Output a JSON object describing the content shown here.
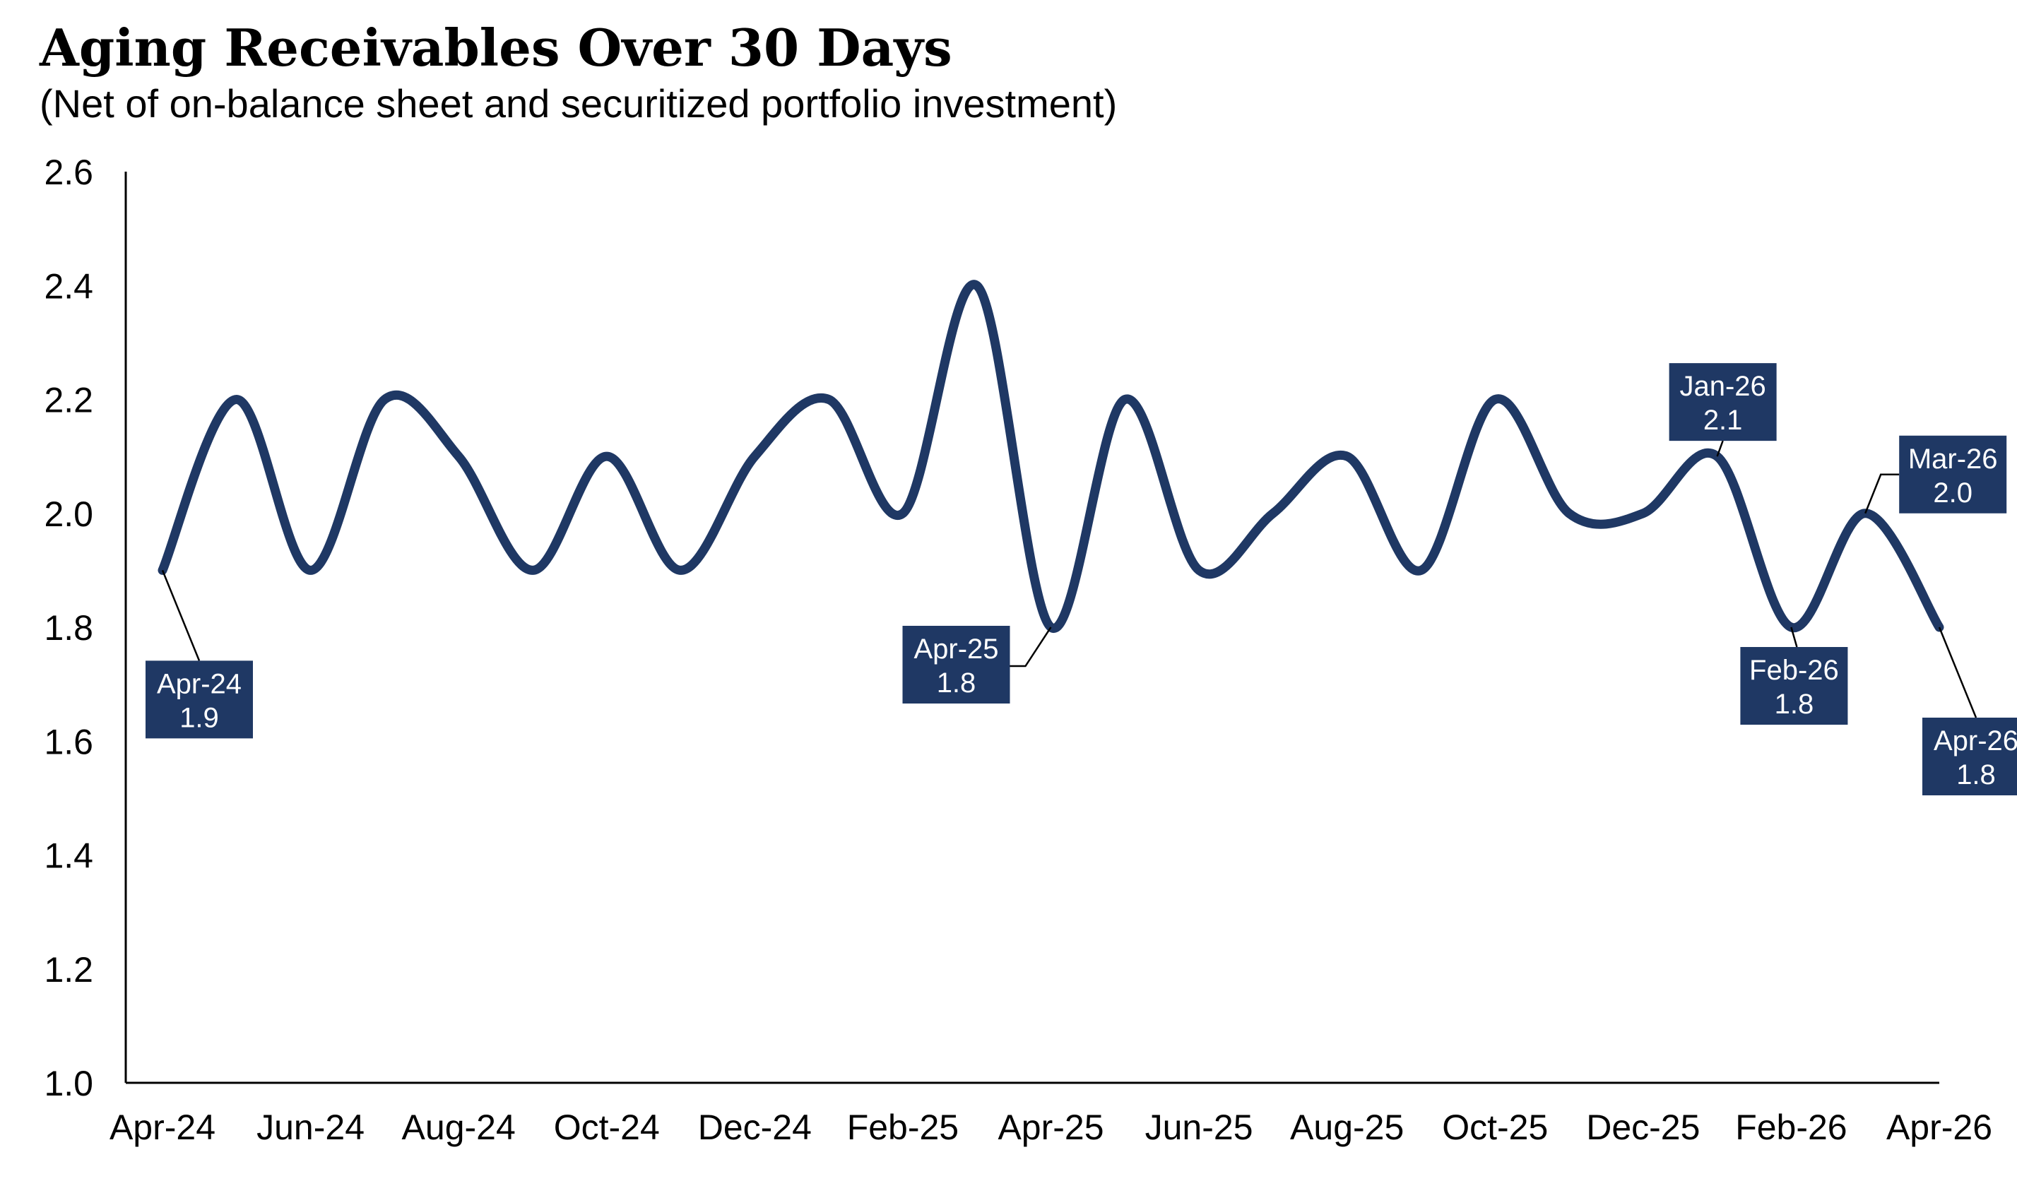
{
  "chart_data": {
    "type": "line",
    "title": "Aging Receivables Over 30 Days",
    "subtitle": "(Net of on-balance sheet and securitized portfolio investment)",
    "xlabel": "",
    "ylabel": "",
    "ylim": [
      1.0,
      2.6
    ],
    "yticks": [
      "1.0",
      "1.2",
      "1.4",
      "1.6",
      "1.8",
      "2.0",
      "2.2",
      "2.4",
      "2.6"
    ],
    "x": [
      "Apr-24",
      "May-24",
      "Jun-24",
      "Jul-24",
      "Aug-24",
      "Sep-24",
      "Oct-24",
      "Nov-24",
      "Dec-24",
      "Jan-25",
      "Feb-25",
      "Mar-25",
      "Apr-25",
      "May-25",
      "Jun-25",
      "Jul-25",
      "Aug-25",
      "Sep-25",
      "Oct-25",
      "Nov-25",
      "Dec-25",
      "Jan-26",
      "Feb-26",
      "Mar-26",
      "Apr-26"
    ],
    "xtick_labels": [
      "Apr-24",
      "Jun-24",
      "Aug-24",
      "Oct-24",
      "Dec-24",
      "Feb-25",
      "Apr-25",
      "Jun-25",
      "Aug-25",
      "Oct-25",
      "Dec-25",
      "Feb-26",
      "Apr-26"
    ],
    "series": [
      {
        "values": [
          1.9,
          2.2,
          1.9,
          2.2,
          2.1,
          1.9,
          2.1,
          1.9,
          2.1,
          2.2,
          2.0,
          2.4,
          1.8,
          2.2,
          1.9,
          2.0,
          2.1,
          1.9,
          2.2,
          2.0,
          2.0,
          2.1,
          1.8,
          2.0,
          1.8
        ],
        "color": "#1f3864"
      }
    ],
    "annotations": [
      {
        "month": "Apr-24",
        "text": "Apr-24",
        "value": "1.9",
        "placement": "below-right"
      },
      {
        "month": "Apr-25",
        "text": "Apr-25",
        "value": "1.8",
        "placement": "left"
      },
      {
        "month": "Jan-26",
        "text": "Jan-26",
        "value": "2.1",
        "placement": "above"
      },
      {
        "month": "Feb-26",
        "text": "Feb-26",
        "value": "1.8",
        "placement": "below"
      },
      {
        "month": "Mar-26",
        "text": "Mar-26",
        "value": "2.0",
        "placement": "above-right"
      },
      {
        "month": "Apr-26",
        "text": "Apr-26",
        "value": "1.8",
        "placement": "below-right"
      }
    ],
    "grid": false,
    "legend": "none",
    "annotation_box_color": "#1f3864",
    "annotation_text_color": "#ffffff"
  }
}
